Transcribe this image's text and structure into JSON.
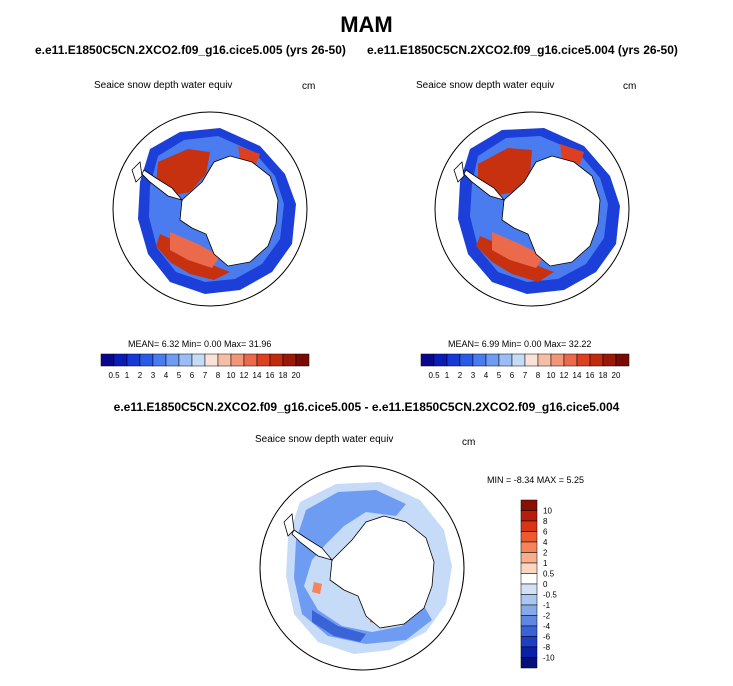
{
  "season": "MAM",
  "panels": [
    {
      "run_title": "e.e11.E1850C5CN.2XCO2.f09_g16.cice5.005 (yrs 26-50)",
      "variable": "Seaice snow depth water equiv",
      "units": "cm",
      "stats": "MEAN=   6.32  Min=   0.00  Max=  31.96"
    },
    {
      "run_title": "e.e11.E1850C5CN.2XCO2.f09_g16.cice5.004 (yrs 26-50)",
      "variable": "Seaice snow depth water equiv",
      "units": "cm",
      "stats": "MEAN=   6.99  Min=   0.00  Max=  32.22"
    }
  ],
  "colorbar": {
    "labels": [
      "0.5",
      "1",
      "2",
      "3",
      "4",
      "5",
      "6",
      "7",
      "8",
      "10",
      "12",
      "14",
      "16",
      "18",
      "20"
    ],
    "colors": [
      "#08088f",
      "#0a1bb8",
      "#1538d6",
      "#2a5ae8",
      "#4a7cef",
      "#6f9cf3",
      "#9bbdf5",
      "#c6dbf7",
      "#fbe2d6",
      "#f7bea6",
      "#f29578",
      "#ea6a4b",
      "#dc4020",
      "#c22a0e",
      "#9a1808",
      "#7a0a04"
    ]
  },
  "difference": {
    "title": "e.e11.E1850C5CN.2XCO2.f09_g16.cice5.005 - e.e11.E1850C5CN.2XCO2.f09_g16.cice5.004",
    "variable": "Seaice snow depth water equiv",
    "units": "cm",
    "minmax": "MIN =  -8.34 MAX =   5.25",
    "colorbar": {
      "labels": [
        "10",
        "8",
        "6",
        "4",
        "2",
        "1",
        "0.5",
        "0",
        "-0.5",
        "-1",
        "-2",
        "-4",
        "-6",
        "-8",
        "-10"
      ],
      "colors": [
        "#8a0f05",
        "#b71d0a",
        "#d83515",
        "#ec5a2e",
        "#f5845a",
        "#f9ae8e",
        "#fcd6c2",
        "#ffffff",
        "#d2e1f7",
        "#aac6f1",
        "#86a9ea",
        "#5f87e3",
        "#3a63d8",
        "#1d3fc4",
        "#0b20a8",
        "#04107a"
      ]
    }
  },
  "colors": {
    "ice_high": "#c8310f",
    "ice_low": "#1b3fd8",
    "diff_blue": "#6f9cf3",
    "diff_pale": "#c6dbf7",
    "coast": "#000000"
  }
}
